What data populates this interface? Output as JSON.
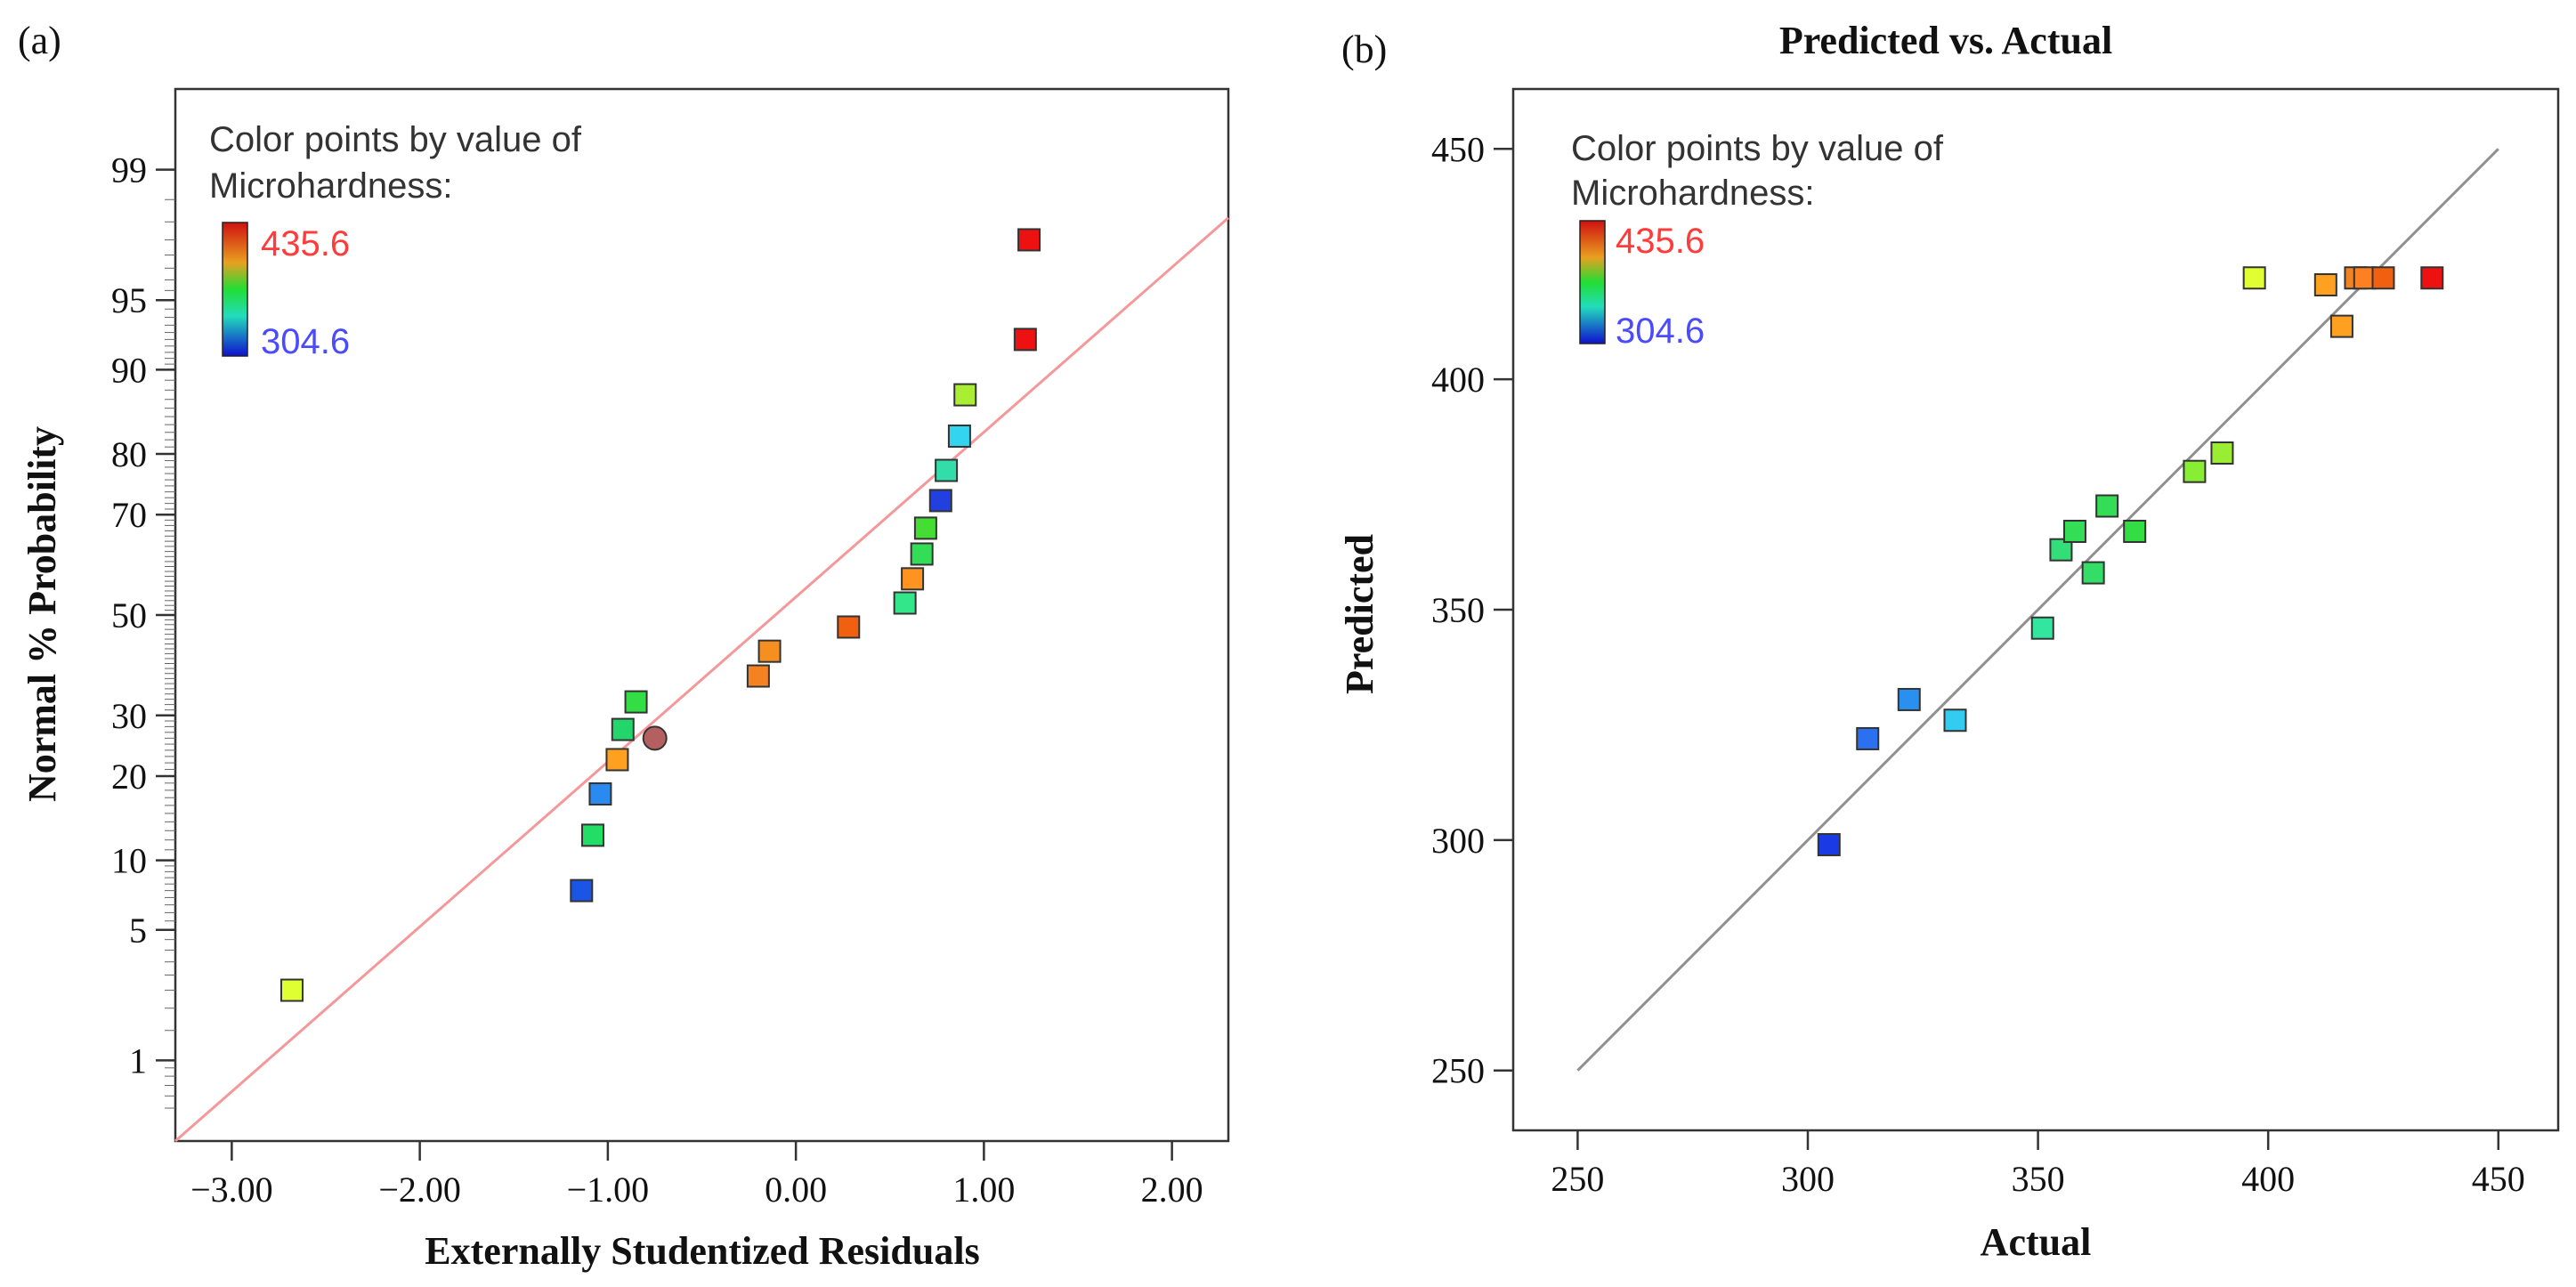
{
  "colors": {
    "fit_line_left": "#f4989a",
    "fit_line_right": "#909090",
    "frame": "#333333",
    "legend_max": "#ff3b3b",
    "legend_min": "#4a4aff"
  },
  "chart_data": [
    {
      "panel_label": "(a)",
      "type": "scatter",
      "title": "",
      "xlabel": "Externally Studentized Residuals",
      "ylabel": "Normal % Probability",
      "x_ticks": [
        "−3.00",
        "−2.00",
        "−1.00",
        "0.00",
        "1.00",
        "2.00"
      ],
      "x_tick_values": [
        -3,
        -2,
        -1,
        0,
        1,
        2
      ],
      "y_ticks": [
        "1",
        "5",
        "10",
        "20",
        "30",
        "50",
        "70",
        "80",
        "90",
        "95",
        "99"
      ],
      "y_tick_values": [
        1,
        5,
        10,
        20,
        30,
        50,
        70,
        80,
        90,
        95,
        99
      ],
      "xlim": [
        -3.3,
        2.3
      ],
      "ylim_percent": [
        0.3,
        99.7
      ],
      "legend": {
        "title_line1": "Color points by value of",
        "title_line2": "Microhardness:",
        "max_label": "435.6",
        "min_label": "304.6",
        "placement": "top-left"
      },
      "fit_line": {
        "x1": -3.3,
        "p1": 0.3,
        "x2": 2.3,
        "p2": 98.1
      },
      "points": [
        {
          "x": -2.68,
          "p": 2.5,
          "color": "#dfff33",
          "shape": "square"
        },
        {
          "x": -1.14,
          "p": 7.5,
          "color": "#1a55e6",
          "shape": "square"
        },
        {
          "x": -1.08,
          "p": 12.5,
          "color": "#22dd66",
          "shape": "square"
        },
        {
          "x": -1.04,
          "p": 17.5,
          "color": "#2a8af0",
          "shape": "square"
        },
        {
          "x": -0.95,
          "p": 22.5,
          "color": "#ffa020",
          "shape": "square"
        },
        {
          "x": -0.92,
          "p": 27.5,
          "color": "#22d66a",
          "shape": "square"
        },
        {
          "x": -0.85,
          "p": 32.5,
          "color": "#33dd44",
          "shape": "square"
        },
        {
          "x": -0.75,
          "p": 26.0,
          "color": "#b56060",
          "shape": "circle"
        },
        {
          "x": -0.2,
          "p": 37.5,
          "color": "#f58220",
          "shape": "square"
        },
        {
          "x": -0.14,
          "p": 42.5,
          "color": "#f59020",
          "shape": "square"
        },
        {
          "x": 0.28,
          "p": 47.5,
          "color": "#f06010",
          "shape": "square"
        },
        {
          "x": 0.58,
          "p": 52.5,
          "color": "#33e68a",
          "shape": "square"
        },
        {
          "x": 0.62,
          "p": 57.5,
          "color": "#ff9520",
          "shape": "square"
        },
        {
          "x": 0.67,
          "p": 62.5,
          "color": "#33dd55",
          "shape": "square"
        },
        {
          "x": 0.69,
          "p": 67.5,
          "color": "#44dd33",
          "shape": "square"
        },
        {
          "x": 0.77,
          "p": 72.5,
          "color": "#2240e0",
          "shape": "square"
        },
        {
          "x": 0.8,
          "p": 77.5,
          "color": "#33ddaa",
          "shape": "square"
        },
        {
          "x": 0.87,
          "p": 82.5,
          "color": "#33d4f0",
          "shape": "square"
        },
        {
          "x": 0.9,
          "p": 87.5,
          "color": "#aaee33",
          "shape": "square"
        },
        {
          "x": 1.22,
          "p": 92.5,
          "color": "#ee1111",
          "shape": "square"
        },
        {
          "x": 1.24,
          "p": 97.5,
          "color": "#ee1111",
          "shape": "square"
        }
      ]
    },
    {
      "panel_label": "(b)",
      "type": "scatter",
      "title": "Predicted vs. Actual",
      "xlabel": "Actual",
      "ylabel": "Predicted",
      "x_ticks": [
        "250",
        "300",
        "350",
        "400",
        "450"
      ],
      "x_tick_values": [
        250,
        300,
        350,
        400,
        450
      ],
      "y_ticks": [
        "250",
        "300",
        "350",
        "400",
        "450"
      ],
      "y_tick_values": [
        250,
        300,
        350,
        400,
        450
      ],
      "xlim": [
        236,
        463
      ],
      "ylim": [
        237,
        463
      ],
      "legend": {
        "title_line1": "Color points by value of",
        "title_line2": "Microhardness:",
        "max_label": "435.6",
        "min_label": "304.6",
        "placement": "top-left"
      },
      "fit_line": {
        "x1": 250,
        "y1": 250,
        "x2": 450,
        "y2": 450
      },
      "points": [
        {
          "x": 304.6,
          "y": 299,
          "color": "#1a3ae6"
        },
        {
          "x": 313,
          "y": 322,
          "color": "#2a70f0"
        },
        {
          "x": 322,
          "y": 330.5,
          "color": "#2a90f0"
        },
        {
          "x": 332,
          "y": 326,
          "color": "#33ccf0"
        },
        {
          "x": 351,
          "y": 346,
          "color": "#33e6a0"
        },
        {
          "x": 355,
          "y": 363,
          "color": "#33dd77"
        },
        {
          "x": 358,
          "y": 367,
          "color": "#33dd55"
        },
        {
          "x": 362,
          "y": 358,
          "color": "#33dd66"
        },
        {
          "x": 365,
          "y": 372.5,
          "color": "#33dd55"
        },
        {
          "x": 371,
          "y": 367,
          "color": "#33dd44"
        },
        {
          "x": 384,
          "y": 380,
          "color": "#88ee33"
        },
        {
          "x": 390,
          "y": 384,
          "color": "#99ee33"
        },
        {
          "x": 397,
          "y": 422,
          "color": "#dfff33"
        },
        {
          "x": 412.5,
          "y": 420.5,
          "color": "#ffa020"
        },
        {
          "x": 416,
          "y": 411.5,
          "color": "#ffa020"
        },
        {
          "x": 419,
          "y": 422,
          "color": "#f58220"
        },
        {
          "x": 421,
          "y": 422,
          "color": "#ff8020"
        },
        {
          "x": 425,
          "y": 422,
          "color": "#f06010"
        },
        {
          "x": 435.6,
          "y": 422,
          "color": "#ee1111"
        }
      ]
    }
  ]
}
